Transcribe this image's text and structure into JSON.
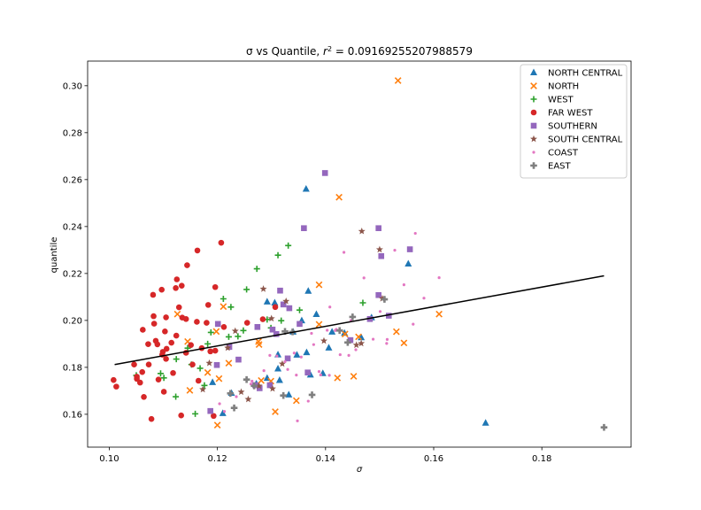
{
  "chart_data": {
    "type": "scatter",
    "title_prefix": "σ vs Quantile, ",
    "title_r2_label": "r",
    "title_r2_exp": "2",
    "title_r2_value": " = 0.0916925520798857​9",
    "xlabel": "σ",
    "ylabel": "quantile",
    "xlim": [
      0.096,
      0.1965
    ],
    "ylim": [
      0.146,
      0.3105
    ],
    "xticks": [
      0.1,
      0.12,
      0.14,
      0.16,
      0.18
    ],
    "xtick_labels": [
      "0.10",
      "0.12",
      "0.14",
      "0.16",
      "0.18"
    ],
    "yticks": [
      0.16,
      0.18,
      0.2,
      0.22,
      0.24,
      0.26,
      0.28,
      0.3
    ],
    "ytick_labels": [
      "0.16",
      "0.18",
      "0.20",
      "0.22",
      "0.24",
      "0.26",
      "0.28",
      "0.30"
    ],
    "grid": false,
    "legend_position": "top-right",
    "trendline": {
      "x": [
        0.101,
        0.1915
      ],
      "y": [
        0.1812,
        0.219
      ],
      "color": "#000000"
    },
    "series": [
      {
        "name": "NORTH CENTRAL",
        "marker": "triangle",
        "color": "#1f77b4",
        "x": [
          0.1364,
          0.1553,
          0.1696,
          0.1306,
          0.1292,
          0.1356,
          0.1368,
          0.1383,
          0.134,
          0.1412,
          0.1435,
          0.1395,
          0.1466,
          0.1312,
          0.1292,
          0.1312,
          0.1347,
          0.1226,
          0.1191,
          0.121,
          0.1272,
          0.1365,
          0.1315,
          0.1372,
          0.1332,
          0.1485,
          0.1406
        ],
        "y": [
          0.256,
          0.2241,
          0.1563,
          0.2075,
          0.2079,
          0.1999,
          0.2125,
          0.2026,
          0.1951,
          0.1951,
          0.1946,
          0.1774,
          0.1927,
          0.1854,
          0.1754,
          0.1794,
          0.1853,
          0.169,
          0.1736,
          0.1604,
          0.173,
          0.1863,
          0.1745,
          0.1768,
          0.1683,
          0.2012,
          0.1883
        ]
      },
      {
        "name": "NORTH",
        "marker": "x",
        "color": "#ff7f0e",
        "x": [
          0.1534,
          0.1425,
          0.1388,
          0.161,
          0.1531,
          0.1545,
          0.1461,
          0.1388,
          0.1436,
          0.1422,
          0.1452,
          0.1198,
          0.1182,
          0.1307,
          0.1281,
          0.1299,
          0.1346,
          0.1149,
          0.1211,
          0.1276,
          0.12,
          0.1221,
          0.1126,
          0.1277,
          0.1203,
          0.1145
        ],
        "y": [
          0.3022,
          0.2525,
          0.2152,
          0.2027,
          0.1952,
          0.1904,
          0.193,
          0.1983,
          0.1942,
          0.1755,
          0.1762,
          0.1953,
          0.1778,
          0.1611,
          0.1744,
          0.1741,
          0.1658,
          0.1702,
          0.2059,
          0.191,
          0.1554,
          0.1818,
          0.2027,
          0.1897,
          0.1752,
          0.191
        ]
      },
      {
        "name": "WEST",
        "marker": "plus",
        "color": "#2ca02c",
        "x": [
          0.1331,
          0.1312,
          0.1273,
          0.1254,
          0.1225,
          0.1211,
          0.1221,
          0.1352,
          0.1318,
          0.1469,
          0.1248,
          0.1292,
          0.1188,
          0.1145,
          0.1124,
          0.1168,
          0.1182,
          0.1159,
          0.1123,
          0.1176,
          0.1101,
          0.105,
          0.1095,
          0.1152,
          0.1238,
          0.1299
        ],
        "y": [
          0.2319,
          0.2278,
          0.222,
          0.2132,
          0.2057,
          0.2092,
          0.193,
          0.2044,
          0.1999,
          0.2075,
          0.1957,
          0.2004,
          0.1949,
          0.1882,
          0.1835,
          0.1796,
          0.19,
          0.1602,
          0.1675,
          0.1723,
          0.1755,
          0.1766,
          0.1774,
          0.1812,
          0.1932,
          0.1968
        ]
      },
      {
        "name": "FAR WEST",
        "marker": "circle",
        "color": "#d62728",
        "x": [
          0.1207,
          0.1163,
          0.1144,
          0.1125,
          0.1097,
          0.1134,
          0.1081,
          0.1105,
          0.1129,
          0.1082,
          0.1135,
          0.118,
          0.1162,
          0.1142,
          0.1083,
          0.1062,
          0.1086,
          0.1103,
          0.1072,
          0.1089,
          0.1124,
          0.1196,
          0.1183,
          0.1212,
          0.1255,
          0.1284,
          0.1307,
          0.1099,
          0.1098,
          0.1105,
          0.1151,
          0.1171,
          0.1196,
          0.1078,
          0.1064,
          0.1101,
          0.1091,
          0.1118,
          0.1142,
          0.1133,
          0.1154,
          0.1046,
          0.1057,
          0.1051,
          0.1013,
          0.1008,
          0.1051,
          0.1061,
          0.1073,
          0.1106,
          0.1123,
          0.1115,
          0.1187,
          0.1193,
          0.1165
        ],
        "y": [
          0.2331,
          0.2298,
          0.2235,
          0.2175,
          0.2131,
          0.2148,
          0.2109,
          0.2013,
          0.2056,
          0.2018,
          0.2012,
          0.199,
          0.1994,
          0.2006,
          0.1986,
          0.196,
          0.1913,
          0.1953,
          0.1899,
          0.1898,
          0.1935,
          0.2142,
          0.2066,
          0.1972,
          0.199,
          0.2005,
          0.2057,
          0.1866,
          0.1854,
          0.1836,
          0.1895,
          0.1882,
          0.1871,
          0.158,
          0.1674,
          0.1696,
          0.1748,
          0.1776,
          0.1862,
          0.1595,
          0.1812,
          0.1812,
          0.1735,
          0.1751,
          0.1718,
          0.1746,
          0.176,
          0.178,
          0.1812,
          0.1879,
          0.2138,
          0.1905,
          0.1868,
          0.1593,
          0.1743
        ]
      },
      {
        "name": "SOUTHERN",
        "marker": "square",
        "color": "#9467bd",
        "x": [
          0.1399,
          0.136,
          0.1498,
          0.1556,
          0.1503,
          0.1316,
          0.1302,
          0.1333,
          0.1352,
          0.1274,
          0.1309,
          0.1446,
          0.1498,
          0.1517,
          0.1482,
          0.1201,
          0.1222,
          0.1239,
          0.127,
          0.1297,
          0.133,
          0.1322,
          0.1367,
          0.1199,
          0.1187,
          0.1278
        ],
        "y": [
          0.2628,
          0.2393,
          0.2393,
          0.2303,
          0.2274,
          0.2127,
          0.1961,
          0.2052,
          0.1985,
          0.1972,
          0.1942,
          0.1916,
          0.2108,
          0.202,
          0.2006,
          0.1985,
          0.1887,
          0.1833,
          0.1724,
          0.1724,
          0.1838,
          0.2068,
          0.1778,
          0.181,
          0.1614,
          0.1711
        ]
      },
      {
        "name": "SOUTH CENTRAL",
        "marker": "star",
        "color": "#8c564b",
        "x": [
          0.1467,
          0.15,
          0.1285,
          0.1327,
          0.1397,
          0.1457,
          0.1466,
          0.13,
          0.1233,
          0.1185,
          0.1244,
          0.1173,
          0.1257,
          0.132,
          0.1302,
          0.1505,
          0.1277,
          0.1219
        ],
        "y": [
          0.238,
          0.2302,
          0.2134,
          0.2082,
          0.1913,
          0.1895,
          0.1902,
          0.2008,
          0.1955,
          0.1818,
          0.1695,
          0.1706,
          0.1664,
          0.1815,
          0.1709,
          0.2093,
          0.1721,
          0.1883
        ]
      },
      {
        "name": "COAST",
        "marker": "point",
        "color": "#e377c2",
        "x": [
          0.1566,
          0.1528,
          0.1545,
          0.161,
          0.1471,
          0.1434,
          0.1408,
          0.1501,
          0.1447,
          0.1582,
          0.1562,
          0.1514,
          0.1403,
          0.1418,
          0.1488,
          0.1378,
          0.1355,
          0.1342,
          0.1456,
          0.1427,
          0.1388,
          0.1391,
          0.1407,
          0.1348,
          0.133,
          0.131,
          0.1286,
          0.1264,
          0.1368,
          0.1346,
          0.1325,
          0.1297,
          0.1262,
          0.1235,
          0.1213,
          0.1204,
          0.1374,
          0.142,
          0.1443,
          0.1513
        ],
        "y": [
          0.2371,
          0.2299,
          0.2152,
          0.2182,
          0.2181,
          0.229,
          0.2057,
          0.2038,
          0.2,
          0.2095,
          0.1984,
          0.1919,
          0.1958,
          0.1957,
          0.192,
          0.1897,
          0.1844,
          0.1861,
          0.1875,
          0.1854,
          0.1782,
          0.1768,
          0.1766,
          0.1572,
          0.1791,
          0.1848,
          0.1786,
          0.1741,
          0.1656,
          0.1767,
          0.1824,
          0.1851,
          0.1729,
          0.1675,
          0.1612,
          0.1645,
          0.1945,
          0.1962,
          0.1851,
          0.1902
        ]
      },
      {
        "name": "EAST",
        "marker": "plus-thick",
        "color": "#7f7f7f",
        "x": [
          0.1915,
          0.1509,
          0.145,
          0.1426,
          0.1441,
          0.1339,
          0.1325,
          0.1322,
          0.1268,
          0.1254,
          0.1231,
          0.1224,
          0.1375
        ],
        "y": [
          0.1544,
          0.209,
          0.2015,
          0.1957,
          0.1906,
          0.1951,
          0.1953,
          0.168,
          0.1721,
          0.1748,
          0.1627,
          0.1689,
          0.1683
        ]
      }
    ]
  }
}
